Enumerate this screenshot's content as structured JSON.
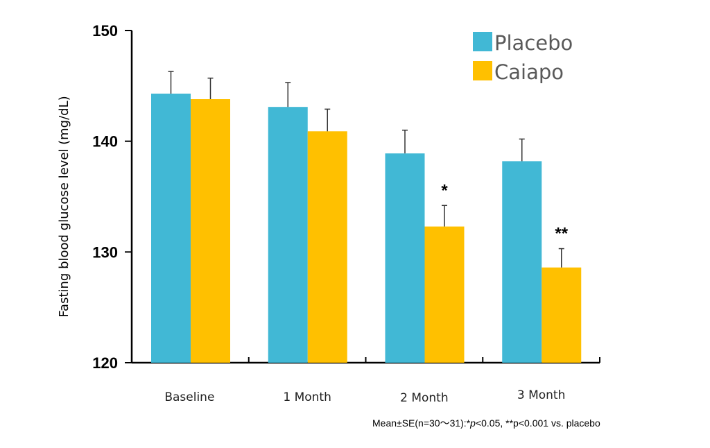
{
  "chart_data": {
    "type": "bar",
    "title": "",
    "xlabel": "",
    "ylabel": "Fasting blood glucose level (mg/dL)",
    "ylim": [
      120,
      150
    ],
    "yticks": [
      120,
      130,
      140,
      150
    ],
    "grid": false,
    "legend_position": "top-right",
    "categories": [
      "Baseline",
      "1 Month",
      "2 Month",
      "3 Month"
    ],
    "series": [
      {
        "name": "Placebo",
        "color": "#41B8D5",
        "values": [
          144.3,
          143.1,
          138.9,
          138.2
        ],
        "error": [
          2.0,
          2.2,
          2.1,
          2.0
        ],
        "significance": [
          "",
          "",
          "",
          ""
        ]
      },
      {
        "name": "Caiapo",
        "color": "#FFC000",
        "values": [
          143.8,
          140.9,
          132.3,
          128.6
        ],
        "error": [
          1.9,
          2.0,
          1.9,
          1.7
        ],
        "significance": [
          "",
          "",
          "*",
          "**"
        ]
      }
    ],
    "footnote": {
      "prefix": "Mean±SE(n=30～31):*",
      "p1": "p",
      "middle": "<0.05, **p<0.001 vs. placebo"
    }
  }
}
